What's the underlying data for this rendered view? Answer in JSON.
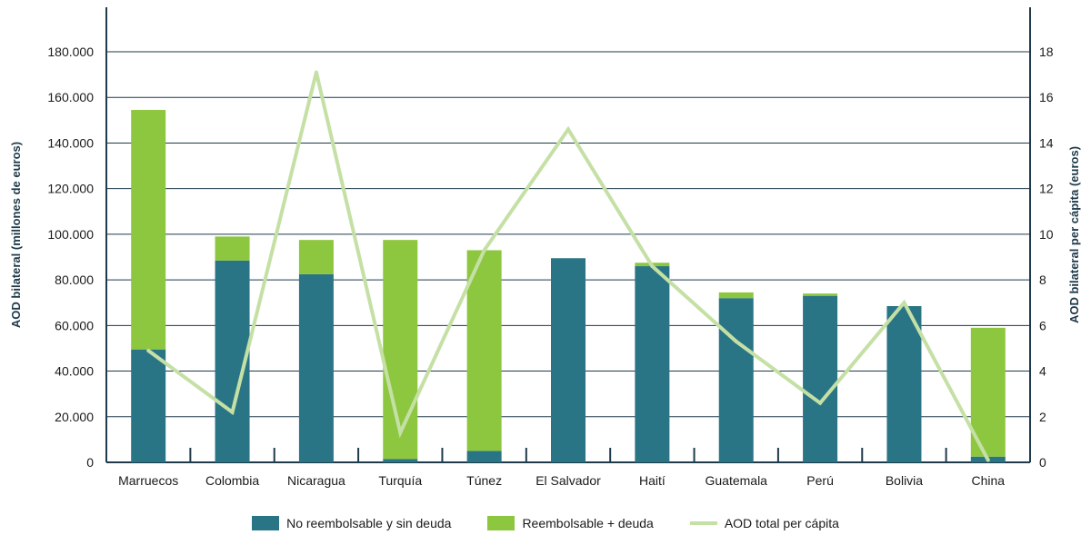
{
  "chart_data": {
    "type": "bar",
    "stacked": true,
    "categories": [
      "Marruecos",
      "Colombia",
      "Nicaragua",
      "Turquía",
      "Túnez",
      "El Salvador",
      "Haití",
      "Guatemala",
      "Perú",
      "Bolivia",
      "China"
    ],
    "series": [
      {
        "name": "No reembolsable y sin deuda",
        "kind": "bar",
        "axis": "left",
        "color": "#2a7585",
        "values": [
          49500,
          88500,
          82500,
          1500,
          5000,
          89500,
          86000,
          72000,
          73000,
          68500,
          2500
        ]
      },
      {
        "name": "Reembolsable + deuda",
        "kind": "bar",
        "axis": "left",
        "color": "#8dc63f",
        "values": [
          105000,
          10500,
          15000,
          96000,
          88000,
          0,
          1500,
          2500,
          1000,
          0,
          56500
        ]
      },
      {
        "name": "AOD total per cápita",
        "kind": "line",
        "axis": "right",
        "color": "#c5e0a5",
        "values": [
          4.9,
          2.2,
          17.1,
          1.3,
          9.3,
          14.6,
          8.6,
          5.3,
          2.6,
          7.0,
          0.1
        ]
      }
    ],
    "ylabel": "AOD bilateral (millones de euros)",
    "y2label": "AOD bilateral per cápita (euros)",
    "ylim": [
      0,
      180000
    ],
    "y2lim": [
      0,
      18
    ],
    "yticks": [
      "0",
      "20.000",
      "40.000",
      "60.000",
      "80.000",
      "100.000",
      "120.000",
      "140.000",
      "160.000",
      "180.000"
    ],
    "y2ticks": [
      "0",
      "2",
      "4",
      "6",
      "8",
      "10",
      "12",
      "14",
      "16",
      "18"
    ],
    "grid": true,
    "legend_position": "bottom"
  }
}
